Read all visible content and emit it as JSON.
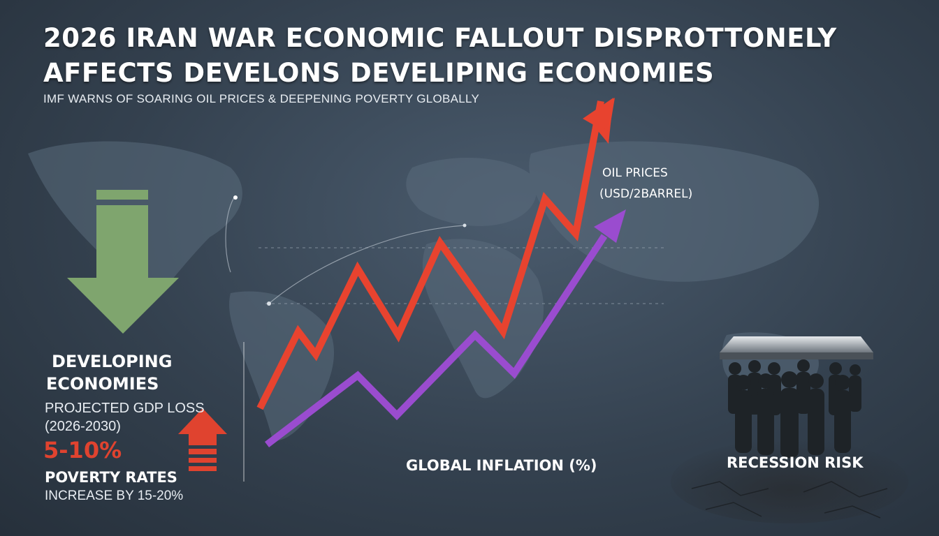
{
  "title": "2026 IRAN WAR ECONOMIC FALLOUT DISPROTTONELY AFFECTS DEVELONS DEVELIPING ECONOMIES",
  "subtitle": "IMF WARNS OF SOARING OIL PRICES & DEEPENING POVERTY GLOBALLY",
  "oil_label": {
    "line1": "OIL PRICES",
    "line2": "(USD/2BARREL)"
  },
  "inflation_label": "GLOBAL INFLATION (%)",
  "developing": {
    "heading_line1": "DEVELOPING",
    "heading_line2": "ECONOMIES",
    "gdp_line1": "PROJECTED GDP LOSS",
    "gdp_line2": "(2026-2030)",
    "gdp_value": "5-10%",
    "poverty_line1": "POVERTY RATES",
    "poverty_line2": "INCREASE BY 15-20%"
  },
  "recession_label": "RECESSION RISK",
  "colors": {
    "oil_line": "#e8432f",
    "inflation_line": "#9a4ccf",
    "down_arrow": "#7fa56e",
    "up_arrow": "#e0432f",
    "background": "#34414f"
  },
  "icons": [
    "down-arrow-icon",
    "up-arrow-icon",
    "people-group-icon",
    "world-map"
  ]
}
